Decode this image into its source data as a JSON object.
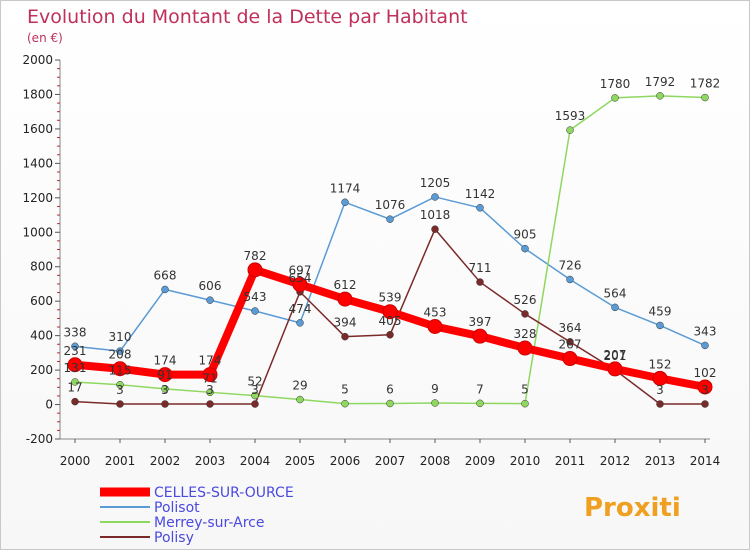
{
  "chart_data": {
    "type": "line",
    "title": "Evolution du Montant de la Dette par Habitant",
    "subtitle": "(en €)",
    "categories": [
      "2000",
      "2001",
      "2002",
      "2003",
      "2004",
      "2005",
      "2006",
      "2007",
      "2008",
      "2009",
      "2010",
      "2011",
      "2012",
      "2013",
      "2014"
    ],
    "ylim": [
      -200,
      2000
    ],
    "yticks": [
      "-200",
      "0",
      "200",
      "400",
      "600",
      "800",
      "1000",
      "1200",
      "1400",
      "1600",
      "1800",
      "2000"
    ],
    "grid": false,
    "legend_position": "bottom-left",
    "series": [
      {
        "name": "CELLES-SUR-OURCE",
        "color": "#ff0000",
        "values": [
          231,
          208,
          174,
          174,
          782,
          697,
          612,
          539,
          453,
          397,
          328,
          267,
          207,
          152,
          102
        ],
        "labels": [
          "231",
          "208",
          "174",
          "174",
          "782",
          "697",
          "612",
          "539",
          "453",
          "397",
          "328",
          "267",
          "207",
          "152",
          "102"
        ]
      },
      {
        "name": "Polisot",
        "color": "#5a9bd5",
        "values": [
          338,
          310,
          668,
          606,
          543,
          474,
          1174,
          1076,
          1205,
          1142,
          905,
          726,
          564,
          459,
          343
        ],
        "labels": [
          "338",
          "310",
          "668",
          "606",
          "543",
          "474",
          "1174",
          "1076",
          "1205",
          "1142",
          "905",
          "726",
          "564",
          "459",
          "343"
        ]
      },
      {
        "name": "Merrey-sur-Arce",
        "color": "#8ed860",
        "values": [
          131,
          115,
          91,
          71,
          52,
          29,
          5,
          6,
          9,
          7,
          5,
          1593,
          1780,
          1792,
          1782
        ],
        "labels": [
          "131",
          "115",
          "91",
          "71",
          "52",
          "29",
          "5",
          "6",
          "9",
          "7",
          "5",
          "1593",
          "1780",
          "1792",
          "1782"
        ]
      },
      {
        "name": "Polisy",
        "color": "#7b2a2a",
        "values": [
          17,
          3,
          3,
          3,
          3,
          654,
          394,
          405,
          1018,
          711,
          526,
          364,
          201,
          3,
          3
        ],
        "labels": [
          "17",
          "3",
          "3",
          "3",
          "3",
          "654",
          "394",
          "405",
          "1018",
          "711",
          "526",
          "364",
          "201",
          "3",
          "3"
        ]
      }
    ]
  },
  "branding": {
    "logo_text": "Proxiti"
  }
}
